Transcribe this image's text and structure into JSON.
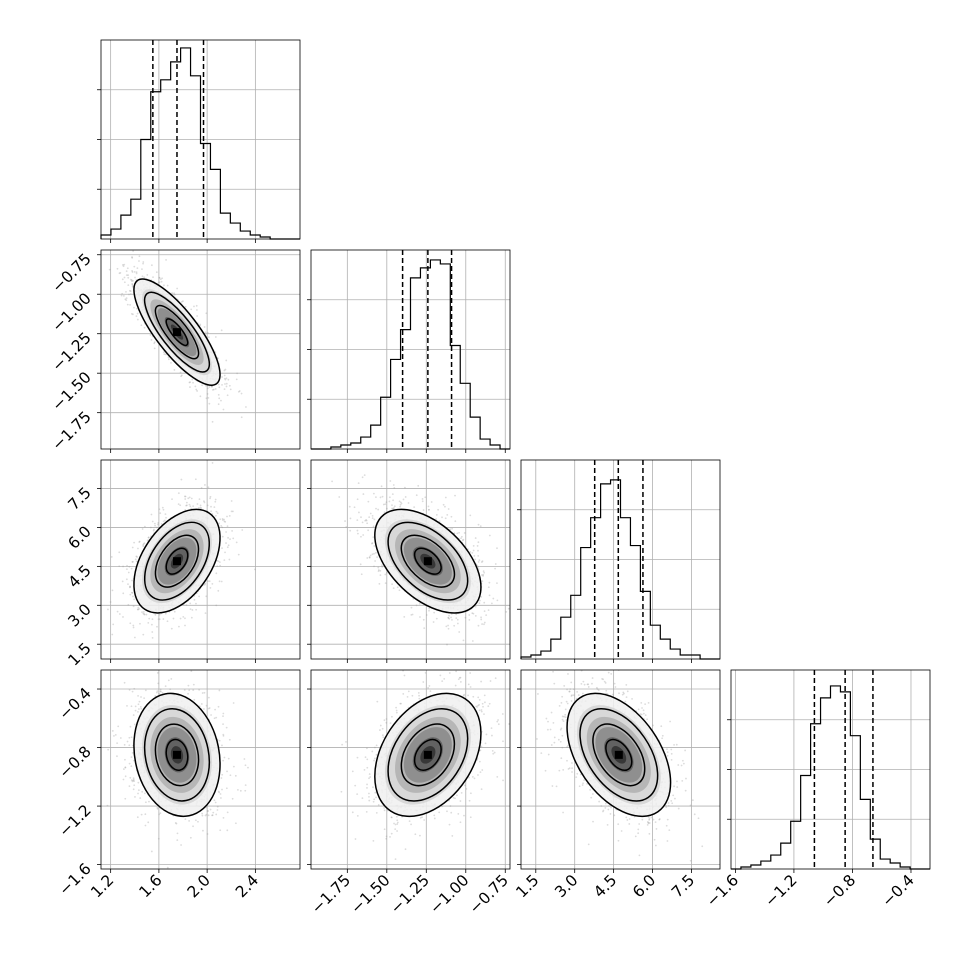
{
  "chart_data": {
    "type": "corner",
    "colors": {
      "line": "#000000",
      "grid": "#b0b0b0",
      "scatter": "#9a9a9a",
      "density_max": "#000000"
    },
    "grid": true,
    "legend": "none",
    "parameters": [
      {
        "range": [
          1.12,
          2.77
        ],
        "quantiles": [
          1.55,
          1.75,
          1.97
        ],
        "ticks": [
          "1.2",
          "1.6",
          "2.0",
          "2.4"
        ],
        "tick_values": [
          1.2,
          1.6,
          2.0,
          2.4
        ],
        "hist_ymax": 1.0,
        "hist_counts": [
          0.02,
          0.05,
          0.12,
          0.2,
          0.5,
          0.74,
          0.8,
          0.89,
          0.96,
          0.82,
          0.48,
          0.35,
          0.13,
          0.08,
          0.04,
          0.02,
          0.01,
          0.0,
          0.0,
          0.0
        ]
      },
      {
        "range": [
          -1.98,
          -0.72
        ],
        "quantiles": [
          -1.4,
          -1.24,
          -1.09
        ],
        "ticks": [
          "−1.75",
          "−1.50",
          "−1.25",
          "−1.00",
          "−0.75"
        ],
        "tick_values": [
          -1.75,
          -1.5,
          -1.25,
          -1.0,
          -0.75
        ],
        "hist_ymax": 1.0,
        "hist_counts": [
          0.0,
          0.0,
          0.01,
          0.02,
          0.03,
          0.06,
          0.12,
          0.26,
          0.45,
          0.6,
          0.86,
          0.91,
          0.95,
          0.93,
          0.52,
          0.33,
          0.16,
          0.05,
          0.02,
          0.0
        ]
      },
      {
        "range": [
          0.93,
          8.6
        ],
        "quantiles": [
          3.77,
          4.68,
          5.63
        ],
        "ticks": [
          "1.5",
          "3.0",
          "4.5",
          "6.0",
          "7.5"
        ],
        "tick_values": [
          1.5,
          3.0,
          4.5,
          6.0,
          7.5
        ],
        "hist_ymax": 1.0,
        "hist_counts": [
          0.01,
          0.02,
          0.04,
          0.1,
          0.21,
          0.32,
          0.56,
          0.71,
          0.88,
          0.9,
          0.71,
          0.57,
          0.34,
          0.17,
          0.1,
          0.05,
          0.02,
          0.02,
          0.0,
          0.0
        ]
      },
      {
        "range": [
          -1.63,
          -0.27
        ],
        "quantiles": [
          -1.06,
          -0.85,
          -0.66
        ],
        "ticks": [
          "−1.6",
          "−1.2",
          "−0.8",
          "−0.4"
        ],
        "tick_values": [
          -1.6,
          -1.2,
          -0.8,
          -0.4
        ],
        "hist_ymax": 1.0,
        "hist_counts": [
          0.0,
          0.01,
          0.02,
          0.04,
          0.07,
          0.13,
          0.24,
          0.47,
          0.73,
          0.86,
          0.92,
          0.89,
          0.67,
          0.35,
          0.15,
          0.05,
          0.03,
          0.01,
          0.0,
          0.0
        ]
      }
    ],
    "pairs": [
      {
        "x": 0,
        "y": 1,
        "mean": [
          1.75,
          -1.24
        ],
        "sd": [
          0.17,
          0.16
        ],
        "corr": -0.8
      },
      {
        "x": 0,
        "y": 2,
        "mean": [
          1.75,
          4.7
        ],
        "sd": [
          0.17,
          0.95
        ],
        "corr": 0.45
      },
      {
        "x": 1,
        "y": 2,
        "mean": [
          -1.24,
          4.7
        ],
        "sd": [
          0.16,
          0.95
        ],
        "corr": -0.5
      },
      {
        "x": 0,
        "y": 3,
        "mean": [
          1.75,
          -0.85
        ],
        "sd": [
          0.17,
          0.2
        ],
        "corr": -0.15
      },
      {
        "x": 1,
        "y": 3,
        "mean": [
          -1.24,
          -0.85
        ],
        "sd": [
          0.16,
          0.2
        ],
        "corr": 0.35
      },
      {
        "x": 2,
        "y": 3,
        "mean": [
          4.7,
          -0.85
        ],
        "sd": [
          0.95,
          0.2
        ],
        "corr": -0.45
      }
    ],
    "contour_levels_sigma": [
      0.5,
      1.0,
      1.5,
      2.0
    ]
  }
}
